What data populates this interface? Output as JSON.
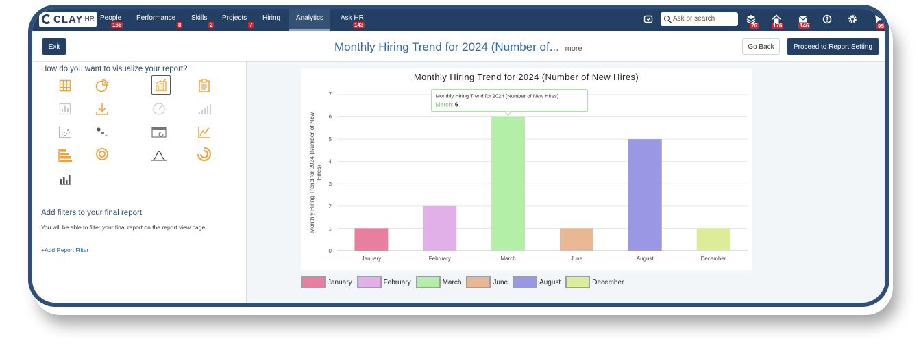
{
  "nav": {
    "logo_text": "CLAY",
    "logo_hr": "HR",
    "items": [
      {
        "label": "People",
        "badge": "166"
      },
      {
        "label": "Performance",
        "badge": "8"
      },
      {
        "label": "Skills",
        "badge": "2"
      },
      {
        "label": "Projects",
        "badge": "7"
      },
      {
        "label": "Hiring",
        "badge": ""
      },
      {
        "label": "Analytics",
        "badge": ""
      },
      {
        "label": "Ask HR",
        "badge": "143"
      }
    ],
    "search_placeholder": "Ask or search",
    "icon_badges": [
      "76",
      "176",
      "146",
      "95"
    ]
  },
  "subheader": {
    "exit_label": "Exit",
    "title": "Monthly Hiring Trend for 2024 (Number of...",
    "more": "more",
    "go_back_label": "Go Back",
    "proceed_label": "Proceed to Report Setting"
  },
  "left": {
    "viz_heading": "How do you want to visualize your report?",
    "filter_heading": "Add filters to your final report",
    "filter_desc": "You will be able to filter your final report on the report view page.",
    "filter_link": "+Add Report Filter"
  },
  "colors": {
    "nav": "#233f63",
    "accent": "#2f6aa7",
    "icon_orange": "#f0a33a"
  },
  "tooltip": {
    "title": "Monthly Hiring Trend for 2024 (Number of New Hires)",
    "label": "March:",
    "value": "6"
  },
  "chart_data": {
    "type": "bar",
    "title": "Monthly Hiring Trend for 2024 (Number of New Hires)",
    "ylabel": "Monthly Hiring Trend for 2024 (Number of New Hires)",
    "xlabel": "",
    "categories": [
      "January",
      "February",
      "March",
      "June",
      "August",
      "December"
    ],
    "values": [
      1,
      2,
      6,
      1,
      5,
      1
    ],
    "colors": [
      "#e97fa0",
      "#e2b0e8",
      "#b3efa6",
      "#e8b895",
      "#9a98e4",
      "#dcec98"
    ],
    "ylim": [
      0,
      7
    ],
    "yticks": [
      0,
      1,
      2,
      3,
      4,
      5,
      6,
      7
    ],
    "grid": true,
    "legend": "bottom-left"
  }
}
